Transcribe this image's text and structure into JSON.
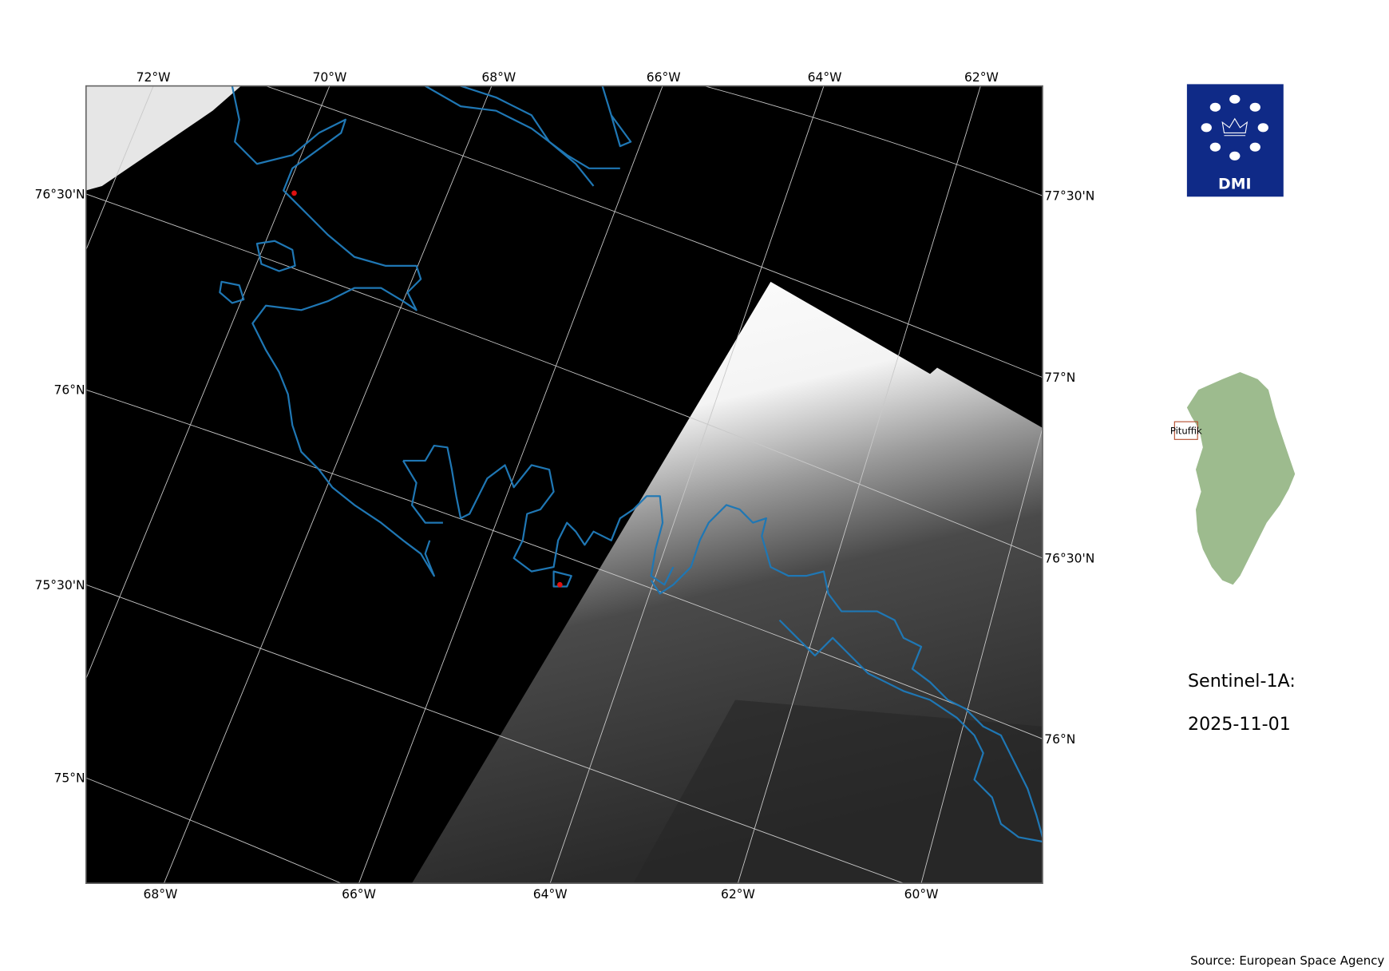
{
  "map": {
    "top_lon_labels": [
      "72°W",
      "70°W",
      "68°W",
      "66°W",
      "64°W",
      "62°W"
    ],
    "bottom_lon_labels": [
      "68°W",
      "66°W",
      "64°W",
      "62°W",
      "60°W"
    ],
    "left_lat_labels": [
      "76°30'N",
      "76°N",
      "75°30'N",
      "75°N"
    ],
    "right_lat_labels": [
      "77°30'N",
      "77°N",
      "76°30'N",
      "76°N"
    ],
    "coastline_color": "#1f77b4",
    "gridline_color": "#cccccc",
    "marker_color": "#e01010"
  },
  "logo": {
    "text": "DMI",
    "background": "#0f2a87"
  },
  "inset": {
    "place_label": "Pituffik",
    "land_color": "#9dbb8e"
  },
  "caption": {
    "satellite": "Sentinel-1A:",
    "date": "2025-11-01"
  },
  "source": "Source: European Space Agency"
}
